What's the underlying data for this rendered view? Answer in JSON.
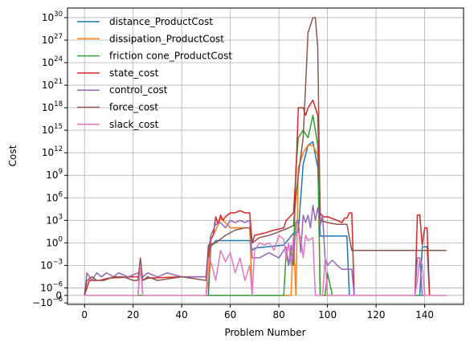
{
  "chart_data": {
    "type": "line",
    "xlabel": "Problem Number",
    "ylabel": "Cost",
    "xlim": [
      -7,
      156
    ],
    "ylim_note": "symlog",
    "linthresh": 1e-06,
    "xticks": [
      0,
      20,
      40,
      60,
      80,
      100,
      120,
      140
    ],
    "yticks": [
      {
        "v": -1e-06,
        "label": "−10",
        "exp": "−6"
      },
      {
        "v": 0,
        "label": "0",
        "exp": ""
      },
      {
        "v": 1e-06,
        "label": "10",
        "exp": "−6"
      },
      {
        "v": 0.001,
        "label": "10",
        "exp": "−3"
      },
      {
        "v": 1,
        "label": "10",
        "exp": "0"
      },
      {
        "v": 1000.0,
        "label": "10",
        "exp": "3"
      },
      {
        "v": 1000000.0,
        "label": "10",
        "exp": "6"
      },
      {
        "v": 1000000000.0,
        "label": "10",
        "exp": "9"
      },
      {
        "v": 1000000000000.0,
        "label": "10",
        "exp": "12"
      },
      {
        "v": 1000000000000000.0,
        "label": "10",
        "exp": "15"
      },
      {
        "v": 1e+18,
        "label": "10",
        "exp": "18"
      },
      {
        "v": 1e+21,
        "label": "10",
        "exp": "21"
      },
      {
        "v": 1e+24,
        "label": "10",
        "exp": "24"
      },
      {
        "v": 1e+27,
        "label": "10",
        "exp": "27"
      },
      {
        "v": 1e+30,
        "label": "10",
        "exp": "30"
      }
    ],
    "grid": true,
    "legend_position": "top-left",
    "series": [
      {
        "name": "distance_ProductCost",
        "color": "#1f77b4",
        "points": [
          [
            0,
            0
          ],
          [
            22,
            0
          ],
          [
            23,
            0.002
          ],
          [
            24,
            0
          ],
          [
            51,
            0
          ],
          [
            52,
            0.3
          ],
          [
            54,
            2
          ],
          [
            68,
            2
          ],
          [
            69,
            0.1
          ],
          [
            70,
            0.2
          ],
          [
            82,
            0.5
          ],
          [
            84,
            3
          ],
          [
            86,
            20
          ],
          [
            88,
            30
          ],
          [
            90,
            30000000000.0
          ],
          [
            92,
            10000000000000.0
          ],
          [
            94,
            30000000000000.0
          ],
          [
            96,
            10000000000.0
          ],
          [
            97,
            8
          ],
          [
            108,
            8
          ],
          [
            109,
            0
          ],
          [
            138,
            0
          ],
          [
            139,
            0.3
          ],
          [
            141,
            0.3
          ],
          [
            142,
            0
          ],
          [
            149,
            0
          ]
        ]
      },
      {
        "name": "dissipation_ProductCost",
        "color": "#ff7f0e",
        "points": [
          [
            0,
            0
          ],
          [
            50,
            0
          ],
          [
            51,
            1e-05
          ],
          [
            52,
            3
          ],
          [
            54,
            50
          ],
          [
            56,
            2000
          ],
          [
            58,
            500
          ],
          [
            60,
            100
          ],
          [
            62,
            100
          ],
          [
            64,
            100
          ],
          [
            66,
            100
          ],
          [
            68,
            100
          ],
          [
            69,
            0
          ],
          [
            85,
            0
          ],
          [
            86,
            10
          ],
          [
            87,
            0
          ],
          [
            88,
            10000000000.0
          ],
          [
            90,
            1000000000000.0
          ],
          [
            92,
            10000000000000.0
          ],
          [
            94,
            10000000000000.0
          ],
          [
            96,
            500000000000.0
          ],
          [
            97,
            0
          ],
          [
            149,
            0
          ]
        ]
      },
      {
        "name": "friction cone_ProductCost",
        "color": "#2ca02c",
        "points": [
          [
            0,
            0
          ],
          [
            80,
            0
          ],
          [
            81,
            0
          ],
          [
            82,
            0
          ],
          [
            83,
            0.05
          ],
          [
            84,
            0.001
          ],
          [
            85,
            0.05
          ],
          [
            86,
            0.001
          ],
          [
            87,
            10000000000.0
          ],
          [
            88,
            100000000000000.0
          ],
          [
            90,
            1000000000000000.0
          ],
          [
            92,
            100000000000000.0
          ],
          [
            94,
            1e+17
          ],
          [
            96,
            10000000000000.0
          ],
          [
            97,
            0
          ],
          [
            99,
            0
          ],
          [
            100,
            0.0001
          ],
          [
            102,
            0
          ],
          [
            149,
            0
          ]
        ]
      },
      {
        "name": "state_cost",
        "color": "#d62728",
        "points": [
          [
            0,
            0
          ],
          [
            1,
            1e-06
          ],
          [
            2,
            1e-05
          ],
          [
            4,
            1e-05
          ],
          [
            6,
            1e-05
          ],
          [
            10,
            2e-05
          ],
          [
            20,
            3e-05
          ],
          [
            22,
            3e-05
          ],
          [
            23,
            0.0001
          ],
          [
            24,
            1e-05
          ],
          [
            26,
            2e-05
          ],
          [
            40,
            3e-05
          ],
          [
            50,
            3e-05
          ],
          [
            51,
            0.01
          ],
          [
            52,
            3
          ],
          [
            53,
            10
          ],
          [
            54,
            3000
          ],
          [
            55,
            300
          ],
          [
            56,
            5000
          ],
          [
            57,
            1000
          ],
          [
            58,
            3000
          ],
          [
            60,
            10000
          ],
          [
            62,
            10000
          ],
          [
            64,
            20000
          ],
          [
            66,
            10000
          ],
          [
            68,
            10000
          ],
          [
            69,
            1
          ],
          [
            70,
            10
          ],
          [
            74,
            20
          ],
          [
            78,
            50
          ],
          [
            82,
            100
          ],
          [
            83,
            1000
          ],
          [
            84,
            2000
          ],
          [
            86,
            10000.0
          ],
          [
            87,
            1000000000.0
          ],
          [
            88,
            1e+18
          ],
          [
            90,
            1e+18
          ],
          [
            91,
            1e+17
          ],
          [
            92,
            1e+18
          ],
          [
            94,
            1e+19
          ],
          [
            96,
            1e+17
          ],
          [
            97,
            10000
          ],
          [
            98,
            3000
          ],
          [
            100,
            3000
          ],
          [
            104,
            1000
          ],
          [
            106,
            500
          ],
          [
            107,
            2000
          ],
          [
            108,
            2000
          ],
          [
            109,
            10000.0
          ],
          [
            110,
            10000.0
          ],
          [
            111,
            0
          ],
          [
            136,
            0
          ],
          [
            137,
            5000
          ],
          [
            138,
            5000
          ],
          [
            139,
            0.5
          ],
          [
            140,
            100
          ],
          [
            141,
            100
          ],
          [
            142,
            0
          ],
          [
            149,
            0
          ]
        ]
      },
      {
        "name": "control_cost",
        "color": "#9467bd",
        "points": [
          [
            0,
            0
          ],
          [
            1,
            0.0001
          ],
          [
            3,
            1e-05
          ],
          [
            5,
            0.0001
          ],
          [
            7,
            3e-05
          ],
          [
            9,
            0.0001
          ],
          [
            12,
            3e-05
          ],
          [
            14,
            0.0001
          ],
          [
            18,
            3e-05
          ],
          [
            22,
            0.0001
          ],
          [
            24,
            3e-05
          ],
          [
            26,
            0.0001
          ],
          [
            30,
            3e-05
          ],
          [
            34,
            0.0001
          ],
          [
            40,
            3e-05
          ],
          [
            50,
            3e-05
          ],
          [
            51,
            0.1
          ],
          [
            52,
            10
          ],
          [
            54,
            300
          ],
          [
            56,
            500
          ],
          [
            58,
            100
          ],
          [
            60,
            1000
          ],
          [
            62,
            500
          ],
          [
            64,
            1000
          ],
          [
            66,
            500
          ],
          [
            68,
            1000
          ],
          [
            69,
            0.01
          ],
          [
            72,
            0.01
          ],
          [
            76,
            0.05
          ],
          [
            80,
            0.01
          ],
          [
            82,
            0.1
          ],
          [
            83,
            0.3
          ],
          [
            84,
            0.001
          ],
          [
            85,
            0.5
          ],
          [
            86,
            0.003
          ],
          [
            87,
            500
          ],
          [
            88,
            1000
          ],
          [
            89,
            0.05
          ],
          [
            90,
            5000
          ],
          [
            91,
            500
          ],
          [
            92,
            5000
          ],
          [
            93,
            100
          ],
          [
            94,
            100000.0
          ],
          [
            95,
            1000
          ],
          [
            96,
            50000.0
          ],
          [
            97,
            200
          ],
          [
            98,
            5000
          ],
          [
            99,
            0.01
          ],
          [
            100,
            0.001
          ],
          [
            102,
            0.005
          ],
          [
            104,
            0.001
          ],
          [
            106,
            0.0003
          ],
          [
            108,
            0.0003
          ],
          [
            110,
            0.0003
          ],
          [
            111,
            0
          ],
          [
            136,
            0
          ],
          [
            137,
            0.01
          ],
          [
            138,
            0.01
          ],
          [
            139,
            0
          ],
          [
            149,
            0
          ]
        ]
      },
      {
        "name": "force_cost",
        "color": "#8c564b",
        "points": [
          [
            0,
            0
          ],
          [
            1,
            1e-05
          ],
          [
            3,
            3e-05
          ],
          [
            5,
            1e-05
          ],
          [
            8,
            1e-05
          ],
          [
            12,
            3e-05
          ],
          [
            16,
            3e-05
          ],
          [
            20,
            1e-05
          ],
          [
            22,
            1e-05
          ],
          [
            23,
            0.01
          ],
          [
            24,
            1e-05
          ],
          [
            26,
            3e-05
          ],
          [
            30,
            1e-05
          ],
          [
            40,
            3e-05
          ],
          [
            50,
            1e-05
          ],
          [
            51,
            0.5
          ],
          [
            54,
            1
          ],
          [
            58,
            10
          ],
          [
            62,
            50
          ],
          [
            66,
            100
          ],
          [
            68,
            100
          ],
          [
            69,
            1
          ],
          [
            72,
            5
          ],
          [
            76,
            10
          ],
          [
            80,
            30
          ],
          [
            84,
            100
          ],
          [
            86,
            200
          ],
          [
            87,
            1000000.0
          ],
          [
            88,
            1000000000.0
          ],
          [
            90,
            100000000000000.0
          ],
          [
            92,
            1e+28
          ],
          [
            94,
            1e+30
          ],
          [
            95,
            1e+30
          ],
          [
            96,
            1e+26
          ],
          [
            97,
            1000
          ],
          [
            100,
            500
          ],
          [
            104,
            300
          ],
          [
            108,
            300
          ],
          [
            110,
            0.1
          ],
          [
            149,
            0.1
          ]
        ]
      },
      {
        "name": "slack_cost",
        "color": "#e377c2",
        "points": [
          [
            0,
            0
          ],
          [
            21,
            0
          ],
          [
            22,
            0
          ],
          [
            23,
            0.001
          ],
          [
            24,
            0
          ],
          [
            50,
            0
          ],
          [
            51,
            0.01
          ],
          [
            52,
            0.003
          ],
          [
            54,
            1e-05
          ],
          [
            56,
            0.1
          ],
          [
            58,
            0.003
          ],
          [
            60,
            0.05
          ],
          [
            62,
            0.0001
          ],
          [
            64,
            0.01
          ],
          [
            66,
            1e-05
          ],
          [
            68,
            0.001
          ],
          [
            69,
            0
          ],
          [
            70,
            0.1
          ],
          [
            72,
            1
          ],
          [
            74,
            0.5
          ],
          [
            76,
            1
          ],
          [
            78,
            0.1
          ],
          [
            80,
            10
          ],
          [
            82,
            3
          ],
          [
            83,
            0.01
          ],
          [
            84,
            1
          ],
          [
            85,
            0.001
          ],
          [
            86,
            5
          ],
          [
            87,
            10
          ],
          [
            88,
            30
          ],
          [
            89,
            5
          ],
          [
            90,
            0.01
          ],
          [
            91,
            10
          ],
          [
            92,
            2
          ],
          [
            94,
            5
          ],
          [
            95,
            0
          ],
          [
            98,
            0
          ],
          [
            99,
            0.01
          ],
          [
            100,
            0
          ],
          [
            136,
            0
          ],
          [
            137,
            1e-05
          ],
          [
            138,
            0.01
          ],
          [
            139,
            0.001
          ],
          [
            140,
            0
          ],
          [
            149,
            0
          ]
        ]
      }
    ]
  }
}
